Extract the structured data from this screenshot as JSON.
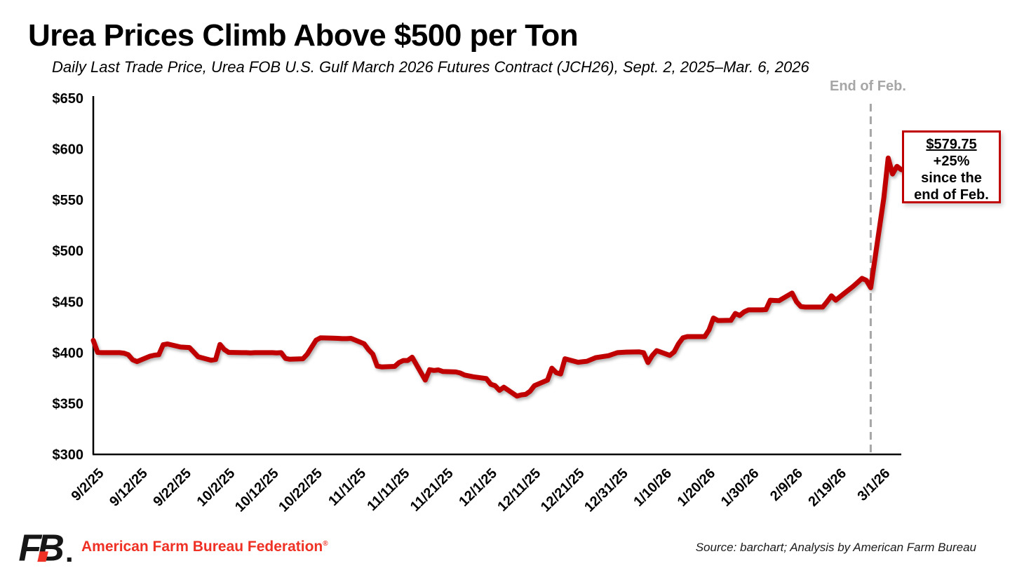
{
  "chart_data": {
    "type": "line",
    "title": "Urea Prices Climb Above $500 per Ton",
    "subtitle": "Daily Last Trade Price, Urea FOB U.S. Gulf March 2026 Futures Contract (JCH26), Sept. 2, 2025–Mar. 6, 2026",
    "line_color": "#C00000",
    "grid": false,
    "legend": "none",
    "ylim": [
      300,
      650
    ],
    "y_ticks": [
      {
        "value": 300,
        "label": "$300"
      },
      {
        "value": 350,
        "label": "$350"
      },
      {
        "value": 400,
        "label": "$400"
      },
      {
        "value": 450,
        "label": "$450"
      },
      {
        "value": 500,
        "label": "$500"
      },
      {
        "value": 550,
        "label": "$550"
      },
      {
        "value": 600,
        "label": "$600"
      },
      {
        "value": 650,
        "label": "$650"
      }
    ],
    "x_ticks": [
      "9/2/25",
      "9/12/25",
      "9/22/25",
      "10/2/25",
      "10/12/25",
      "10/22/25",
      "11/1/25",
      "11/11/25",
      "11/21/25",
      "12/1/25",
      "12/11/25",
      "12/21/25",
      "12/31/25",
      "1/10/26",
      "1/20/26",
      "1/30/26",
      "2/9/26",
      "2/19/26",
      "3/1/26"
    ],
    "event_line": {
      "date": "2/27/26",
      "label": "End of Feb.",
      "color": "#A6A6A6"
    },
    "annotation": {
      "value": "$579.75",
      "lines": [
        "+25%",
        "since the",
        "end of Feb."
      ]
    },
    "points": [
      [
        "9/2/25",
        412
      ],
      [
        "9/3/25",
        400.25
      ],
      [
        "9/4/25",
        400
      ],
      [
        "9/5/25",
        400
      ],
      [
        "9/8/25",
        400
      ],
      [
        "9/9/25",
        399.5
      ],
      [
        "9/10/25",
        398
      ],
      [
        "9/11/25",
        393
      ],
      [
        "9/12/25",
        391.25
      ],
      [
        "9/15/25",
        396.5
      ],
      [
        "9/16/25",
        397.5
      ],
      [
        "9/17/25",
        398
      ],
      [
        "9/18/25",
        407.75
      ],
      [
        "9/19/25",
        408.5
      ],
      [
        "9/22/25",
        405.5
      ],
      [
        "9/23/25",
        405.25
      ],
      [
        "9/24/25",
        405
      ],
      [
        "9/25/25",
        400.5
      ],
      [
        "9/26/25",
        396
      ],
      [
        "9/29/25",
        392.5
      ],
      [
        "9/30/25",
        393.25
      ],
      [
        "10/1/25",
        408
      ],
      [
        "10/2/25",
        403
      ],
      [
        "10/3/25",
        400.25
      ],
      [
        "10/6/25",
        400
      ],
      [
        "10/7/25",
        400
      ],
      [
        "10/8/25",
        399.75
      ],
      [
        "10/9/25",
        400
      ],
      [
        "10/10/25",
        400
      ],
      [
        "10/13/25",
        400
      ],
      [
        "10/14/25",
        399.75
      ],
      [
        "10/15/25",
        400
      ],
      [
        "10/16/25",
        394.25
      ],
      [
        "10/17/25",
        393.5
      ],
      [
        "10/20/25",
        394
      ],
      [
        "10/21/25",
        398.5
      ],
      [
        "10/22/25",
        405.5
      ],
      [
        "10/23/25",
        412.25
      ],
      [
        "10/24/25",
        414.5
      ],
      [
        "10/27/25",
        414.25
      ],
      [
        "10/28/25",
        414
      ],
      [
        "10/29/25",
        413.75
      ],
      [
        "10/30/25",
        413.75
      ],
      [
        "10/31/25",
        414
      ],
      [
        "11/3/25",
        408.75
      ],
      [
        "11/4/25",
        403
      ],
      [
        "11/5/25",
        398.5
      ],
      [
        "11/6/25",
        386.75
      ],
      [
        "11/7/25",
        386
      ],
      [
        "11/10/25",
        386.5
      ],
      [
        "11/11/25",
        390.25
      ],
      [
        "11/12/25",
        392.25
      ],
      [
        "11/13/25",
        392.25
      ],
      [
        "11/14/25",
        395.5
      ],
      [
        "11/17/25",
        373
      ],
      [
        "11/18/25",
        383.25
      ],
      [
        "11/19/25",
        382.5
      ],
      [
        "11/20/25",
        383
      ],
      [
        "11/21/25",
        381.5
      ],
      [
        "11/24/25",
        381
      ],
      [
        "11/25/25",
        380
      ],
      [
        "11/26/25",
        378
      ],
      [
        "11/28/25",
        376.25
      ],
      [
        "12/1/25",
        374.5
      ],
      [
        "12/2/25",
        369
      ],
      [
        "12/3/25",
        367.5
      ],
      [
        "12/4/25",
        363
      ],
      [
        "12/5/25",
        366
      ],
      [
        "12/8/25",
        357.25
      ],
      [
        "12/9/25",
        358.5
      ],
      [
        "12/10/25",
        359
      ],
      [
        "12/11/25",
        362
      ],
      [
        "12/12/25",
        367.5
      ],
      [
        "12/15/25",
        373
      ],
      [
        "12/16/25",
        384.75
      ],
      [
        "12/17/25",
        380.25
      ],
      [
        "12/18/25",
        379
      ],
      [
        "12/19/25",
        394
      ],
      [
        "12/22/25",
        390.5
      ],
      [
        "12/23/25",
        391
      ],
      [
        "12/24/25",
        391.5
      ],
      [
        "12/26/25",
        395
      ],
      [
        "12/29/25",
        397
      ],
      [
        "12/30/25",
        398.5
      ],
      [
        "12/31/25",
        400
      ],
      [
        "1/2/26",
        400.5
      ],
      [
        "1/5/26",
        400.75
      ],
      [
        "1/6/26",
        400
      ],
      [
        "1/7/26",
        390.25
      ],
      [
        "1/8/26",
        397.25
      ],
      [
        "1/9/26",
        402
      ],
      [
        "1/12/26",
        397.25
      ],
      [
        "1/13/26",
        400.75
      ],
      [
        "1/14/26",
        408.75
      ],
      [
        "1/15/26",
        414.5
      ],
      [
        "1/16/26",
        415.75
      ],
      [
        "1/20/26",
        415.75
      ],
      [
        "1/21/26",
        422.5
      ],
      [
        "1/22/26",
        434
      ],
      [
        "1/23/26",
        431.5
      ],
      [
        "1/26/26",
        431.75
      ],
      [
        "1/27/26",
        438.5
      ],
      [
        "1/28/26",
        436.5
      ],
      [
        "1/29/26",
        440
      ],
      [
        "1/30/26",
        442
      ],
      [
        "2/2/26",
        442
      ],
      [
        "2/3/26",
        442.25
      ],
      [
        "2/4/26",
        451.5
      ],
      [
        "2/5/26",
        451.25
      ],
      [
        "2/6/26",
        451
      ],
      [
        "2/9/26",
        458.5
      ],
      [
        "2/10/26",
        450
      ],
      [
        "2/11/26",
        445.25
      ],
      [
        "2/12/26",
        444.75
      ],
      [
        "2/13/26",
        444.75
      ],
      [
        "2/16/26",
        444.75
      ],
      [
        "2/17/26",
        450
      ],
      [
        "2/18/26",
        455.75
      ],
      [
        "2/19/26",
        451.5
      ],
      [
        "2/20/26",
        455
      ],
      [
        "2/23/26",
        465.25
      ],
      [
        "2/24/26",
        469
      ],
      [
        "2/25/26",
        473
      ],
      [
        "2/26/26",
        471
      ],
      [
        "2/27/26",
        463.75
      ],
      [
        "3/2/26",
        552
      ],
      [
        "3/3/26",
        591.25
      ],
      [
        "3/4/26",
        575.5
      ],
      [
        "3/5/26",
        583
      ],
      [
        "3/6/26",
        579.75
      ]
    ]
  },
  "footer": {
    "logo_text": "FB",
    "org": "American Farm Bureau Federation",
    "reg_mark": "®",
    "source": "Source: barchart; Analysis by American Farm Bureau"
  }
}
